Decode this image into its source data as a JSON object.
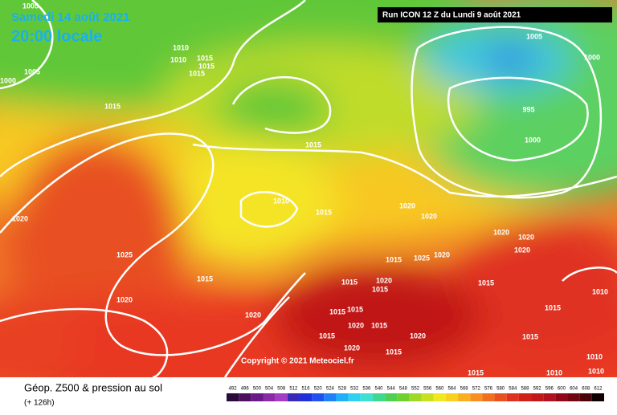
{
  "header": {
    "date": "Samedi 14 août 2021",
    "time": "20:00 locale",
    "run": "Run ICON 12 Z du Lundi 9 août 2021"
  },
  "copyright": "Copyright © 2021 Meteociel.fr",
  "footer": {
    "title": "Géop. Z500 & pression au sol",
    "lead": "(+ 126h)"
  },
  "isobar_labels": [
    1005,
    1005,
    1000,
    1010,
    1010,
    1015,
    1015,
    1015,
    1015,
    1005,
    1000,
    995,
    1000,
    1015,
    1010,
    1015,
    1020,
    1020,
    1020,
    1025,
    1015,
    1020,
    1020,
    1015,
    1025,
    1020,
    1020,
    1020,
    1020,
    1015,
    1020,
    1015,
    1015,
    1015,
    1015,
    1020,
    1015,
    1020,
    1020,
    1015,
    1015,
    1010,
    1015,
    1015,
    1015,
    1010,
    1010,
    1010
  ],
  "legend": {
    "values": [
      492,
      496,
      500,
      504,
      508,
      512,
      516,
      520,
      524,
      528,
      532,
      536,
      540,
      544,
      548,
      552,
      556,
      560,
      564,
      568,
      572,
      576,
      580,
      584,
      588,
      592,
      596,
      600,
      604,
      608,
      612
    ],
    "colors": [
      "#2a0a3a",
      "#4a1060",
      "#6a1a86",
      "#8a2aa8",
      "#a33cc6",
      "#3a2ab8",
      "#2030d8",
      "#2050f0",
      "#2080f8",
      "#20b0f8",
      "#30d0f0",
      "#40e0d0",
      "#40d890",
      "#50d050",
      "#70d030",
      "#a0d828",
      "#c8e020",
      "#f0e820",
      "#f8d020",
      "#f8b020",
      "#f89020",
      "#f07020",
      "#e85020",
      "#e03020",
      "#d02018",
      "#c01818",
      "#b01020",
      "#900818",
      "#700810",
      "#480408",
      "#100000"
    ]
  }
}
